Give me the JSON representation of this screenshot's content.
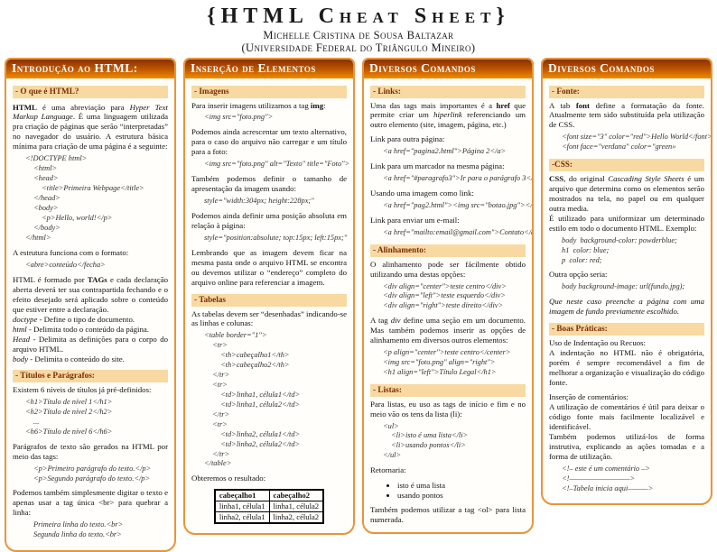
{
  "header": {
    "title": "{HTML Cheat Sheet}",
    "author": "Michelle Cristina de Sousa Baltazar",
    "affiliation": "(Universidade Federal do Triângulo Mineiro)"
  },
  "colors": {
    "hdr_top": "#8a3000",
    "hdr_mid": "#c25a00",
    "hdr_bot": "#f08c00",
    "box_border": "#e8943a",
    "subheader_bg": "#f8d9a2",
    "subheader_text": "#7b2c06",
    "code_text": "#2e2e2e"
  },
  "columns": [
    {
      "header": "Introdução ao HTML:",
      "blocks": [
        {
          "type": "subheader",
          "text": "- O que é HTML?"
        },
        {
          "type": "para",
          "text": "**HTML** é uma abreviação para *Hyper Text Markup Language*. É uma linguagem utilizada pra criação de páginas que serão “interpretadas” no navegador do usuário.  A estrutura básica mínima para criação de uma página é a seguinte:"
        },
        {
          "type": "code",
          "lines": [
            [
              "<!DOCTYPE html>",
              0
            ],
            [
              "<html>",
              1
            ],
            [
              "<head>",
              1
            ],
            [
              "<title>Primeira Webpage</title>",
              2
            ],
            [
              "</head>",
              1
            ],
            [
              "<body>",
              1
            ],
            [
              "<p>Hello, world!</p>",
              2
            ],
            [
              "</body>",
              1
            ],
            [
              "</html>",
              0
            ]
          ]
        },
        {
          "type": "para",
          "text": "A estrutura funciona com o formato:"
        },
        {
          "type": "code",
          "lines": [
            [
              "<abre>conteúdo</fecha>",
              0
            ]
          ]
        },
        {
          "type": "para",
          "text": "HTML é formado por **TAGs** e cada declaração aberta deverá ter sua contrapartida fechando e o efeito desejado será aplicado sobre o conteúdo que estiver entre a declaração."
        },
        {
          "type": "para",
          "tight": true,
          "text": "*doctype* - Define o tipo de documento."
        },
        {
          "type": "para",
          "tight": true,
          "text": "*html* - Delimita todo o conteúdo da página."
        },
        {
          "type": "para",
          "tight": true,
          "text": "*Head* - Delimita as definições para o corpo do arquivo HTML."
        },
        {
          "type": "para",
          "tight": true,
          "text": "*body* - Delimita o conteúdo do site."
        },
        {
          "type": "subheader",
          "text": "- Títulos e Parágrafos:"
        },
        {
          "type": "para",
          "tight": true,
          "text": "Existem 6 níveis de títulos já pré-definidos:"
        },
        {
          "type": "code",
          "lines": [
            [
              "<h1>Título de nível 1</h1>",
              0
            ],
            [
              "<h2>Título de nível 2</h2>",
              0
            ],
            [
              "...",
              1
            ],
            [
              "<h6>Título de nível 6</h6>",
              0
            ]
          ]
        },
        {
          "type": "para",
          "text": "Parágrafos de texto são gerados na HTML por meio das tags:"
        },
        {
          "type": "code",
          "lines": [
            [
              "<p>Primeiro parágrafo do texto.</p>",
              1
            ],
            [
              "<p>Segundo parágrafo do texto.</p>",
              1
            ]
          ]
        },
        {
          "type": "para",
          "text": "Podemos também simplesmente digitar o texto e apenas usar a tag única <br> para quebrar a linha:"
        },
        {
          "type": "code",
          "lines": [
            [
              "Primeira linha do texto.<br>",
              1
            ],
            [
              "Segunda linha do texto.<br>",
              1
            ]
          ]
        }
      ]
    },
    {
      "header": "Inserção de Elementos",
      "blocks": [
        {
          "type": "subheader",
          "text": "- Imagens"
        },
        {
          "type": "para",
          "tight": true,
          "text": "Para inserir imagens utilizamos a tag **img**:"
        },
        {
          "type": "code",
          "lines": [
            [
              "<img src=\"foto.png\">",
              0
            ]
          ]
        },
        {
          "type": "para",
          "text": "Podemos ainda acrescentar um texto alternativo, para o caso do arquivo não carregar e um título para a foto:"
        },
        {
          "type": "code",
          "lines": [
            [
              "<img src=\"foto.png\" alt=\"Texto\" title=\"Foto\">",
              0
            ]
          ]
        },
        {
          "type": "para",
          "text": "Também podemos definir o tamanho de apresentação da imagem usando:"
        },
        {
          "type": "code",
          "lines": [
            [
              "style=\"width:304px; height:228px;\"",
              0
            ]
          ]
        },
        {
          "type": "para",
          "text": "Podemos ainda definir uma posição absoluta em relação à página:"
        },
        {
          "type": "code",
          "lines": [
            [
              "style=\"position:absolute; top:15px; left:15px;\"",
              0
            ]
          ]
        },
        {
          "type": "para",
          "text": "Lembrando que as imagem devem ficar na mesma pasta onde o arquivo HTML se encontra ou devemos utilizar o “endereço” completo do arquivo online para referenciar a imagem."
        },
        {
          "type": "subheader",
          "text": "- Tabelas"
        },
        {
          "type": "para",
          "tight": true,
          "text": "As tabelas devem ser “desenhadas” indicando-se as linhas e colunas:"
        },
        {
          "type": "code",
          "lines": [
            [
              "<table border=\"1\">",
              0
            ],
            [
              "<tr>",
              1
            ],
            [
              "<th>cabeçalho1</th>",
              2
            ],
            [
              "<th>cabeçalho2</th>",
              2
            ],
            [
              "</tr>",
              1
            ],
            [
              "<tr>",
              1
            ],
            [
              "<td>linha1, célula1</td>",
              2
            ],
            [
              "<td>linha1, célula2</td>",
              2
            ],
            [
              "</tr>",
              1
            ],
            [
              "<tr>",
              1
            ],
            [
              "<td>linha2, célula1</td>",
              2
            ],
            [
              "<td>linha2, célula2</td>",
              2
            ],
            [
              "</tr>",
              1
            ],
            [
              "</table>",
              0
            ]
          ]
        },
        {
          "type": "para",
          "text": "Obteremos o resultado:"
        },
        {
          "type": "table",
          "headers": [
            "cabeçalho1",
            "cabeçalho2"
          ],
          "rows": [
            [
              "linha1, célula1",
              "linha1, célula2"
            ],
            [
              "linha2, célula1",
              "linha2, célula2"
            ]
          ]
        }
      ]
    },
    {
      "header": "Diversos Comandos",
      "blocks": [
        {
          "type": "subheader",
          "text": "- Links:"
        },
        {
          "type": "para",
          "tight": true,
          "text": "Uma das tags mais importantes é a **href** que permite criar um *hiperlink* referenciando um outro elemento (site, imagem, página, etc.)"
        },
        {
          "type": "para",
          "text": "Link para outra página:"
        },
        {
          "type": "code",
          "lines": [
            [
              "<a href=\"pagina2.html\">Página 2</a>",
              0
            ]
          ]
        },
        {
          "type": "para",
          "text": "Link para um marcador na mesma página:"
        },
        {
          "type": "code",
          "lines": [
            [
              "<a href=\"#paragrafo3\">Ir para o parágrafo 3</a>",
              0
            ]
          ]
        },
        {
          "type": "para",
          "text": "Usando uma imagem como link:"
        },
        {
          "type": "code",
          "lines": [
            [
              "<a href=\"pag2.html\"><img src=\"botao.jpg\"></a>",
              0
            ]
          ]
        },
        {
          "type": "para",
          "text": "Link para enviar um e-mail:"
        },
        {
          "type": "code",
          "lines": [
            [
              "<a href=\"mailto:email@gmail.com\">Contato</a>",
              0
            ]
          ]
        },
        {
          "type": "subheader",
          "text": "- Alinhamento:"
        },
        {
          "type": "para",
          "tight": true,
          "text": "O alinhamento pode ser fácilmente obtido utilizando uma destas opções:"
        },
        {
          "type": "code",
          "lines": [
            [
              "<div align=\"center\">teste centro</div>",
              0
            ],
            [
              "<div align=\"left\">teste esquerdo</div>",
              0
            ],
            [
              "<div align=\"right\">teste direito</div>",
              0
            ]
          ]
        },
        {
          "type": "para",
          "text": "A tag *div* define uma seção em um documento. Mas também podemos inserir as opções de alinhamento em diversos outros elementos:"
        },
        {
          "type": "code",
          "lines": [
            [
              "<p align=\"center\">teste centro</center>",
              0
            ],
            [
              "<img src=\"foto.png\" align=\"right\">",
              0
            ],
            [
              "<h1 align=\"left\">Título Legal</h1>",
              0
            ]
          ]
        },
        {
          "type": "subheader",
          "text": "- Listas:"
        },
        {
          "type": "para",
          "tight": true,
          "text": "Para listas, eu uso as tags de início e fim e no meio vão os tens da lista (li):"
        },
        {
          "type": "code",
          "lines": [
            [
              "<ul>",
              0
            ],
            [
              "<li>isto é uma lista</li>",
              1
            ],
            [
              "<li>usando pontos</li>",
              1
            ],
            [
              "</ul>",
              0
            ]
          ]
        },
        {
          "type": "para",
          "text": "Retornaria:"
        },
        {
          "type": "bullets",
          "items": [
            "isto é uma lista",
            "usando pontos"
          ]
        },
        {
          "type": "para",
          "text": "Também podemos utilizar a tag <ol> para lista numerada."
        }
      ]
    },
    {
      "header": "Diversos Comandos",
      "blocks": [
        {
          "type": "subheader",
          "text": "- Fonte:"
        },
        {
          "type": "para",
          "tight": true,
          "text": "A tab **font** define a formatação da fonte.  Atualmente tem sido substituída pela utilização de CSS."
        },
        {
          "type": "code",
          "lines": [
            [
              "<font size=\"3\" color=\"red\">Hello World</font>",
              0
            ],
            [
              "<font face=\"verdana\" color=\"green»",
              0
            ]
          ]
        },
        {
          "type": "subheader",
          "text": "-CSS:"
        },
        {
          "type": "para",
          "tight": true,
          "text": "**CSS**, do original *Cascading Style Sheets* é um arquivo que determina como os elementos serão mostrados na tela, no papel ou em qualquer outra media."
        },
        {
          "type": "para",
          "tight": true,
          "text": "É utilizado para uniformizar um determinado estilo em todo o documento HTML. Exemplo:"
        },
        {
          "type": "code",
          "lines": [
            [
              "body  background-color: powderblue;",
              0
            ],
            [
              "h1  color: blue;",
              0
            ],
            [
              "p  color: red;",
              0
            ]
          ]
        },
        {
          "type": "para",
          "text": "Outra opção seria:"
        },
        {
          "type": "code",
          "lines": [
            [
              "body background-image: url(fundo.jpg);",
              0
            ]
          ]
        },
        {
          "type": "para",
          "italic": true,
          "text": "Que neste caso preenche a página com uma imagem de fundo previamente escolhido."
        },
        {
          "type": "subheader",
          "text": "- Boas Práticas:"
        },
        {
          "type": "para",
          "tight": true,
          "text": "Uso de Indentação ou Recuos:"
        },
        {
          "type": "para",
          "tight": true,
          "text": "A indentação no HTML não é obrigatória, porém é sempre recomendável a fim de melhorar a organização e visualização do código fonte."
        },
        {
          "type": "para",
          "text": "Inserção de comentários:"
        },
        {
          "type": "para",
          "tight": true,
          "text": "A utilização de comentários é útil para deixar o código fonte mais facilmente localizável e identificável."
        },
        {
          "type": "para",
          "tight": true,
          "text": "Também podemos utilizá-los de forma instrutiva, explicando as ações tomadas e a forma de utilização."
        },
        {
          "type": "code",
          "lines": [
            [
              "<!– este é um comentário –>",
              0
            ],
            [
              "<!—————————>",
              0
            ],
            [
              "<!–Tabela inicia aqui———>",
              0
            ]
          ]
        }
      ]
    }
  ]
}
